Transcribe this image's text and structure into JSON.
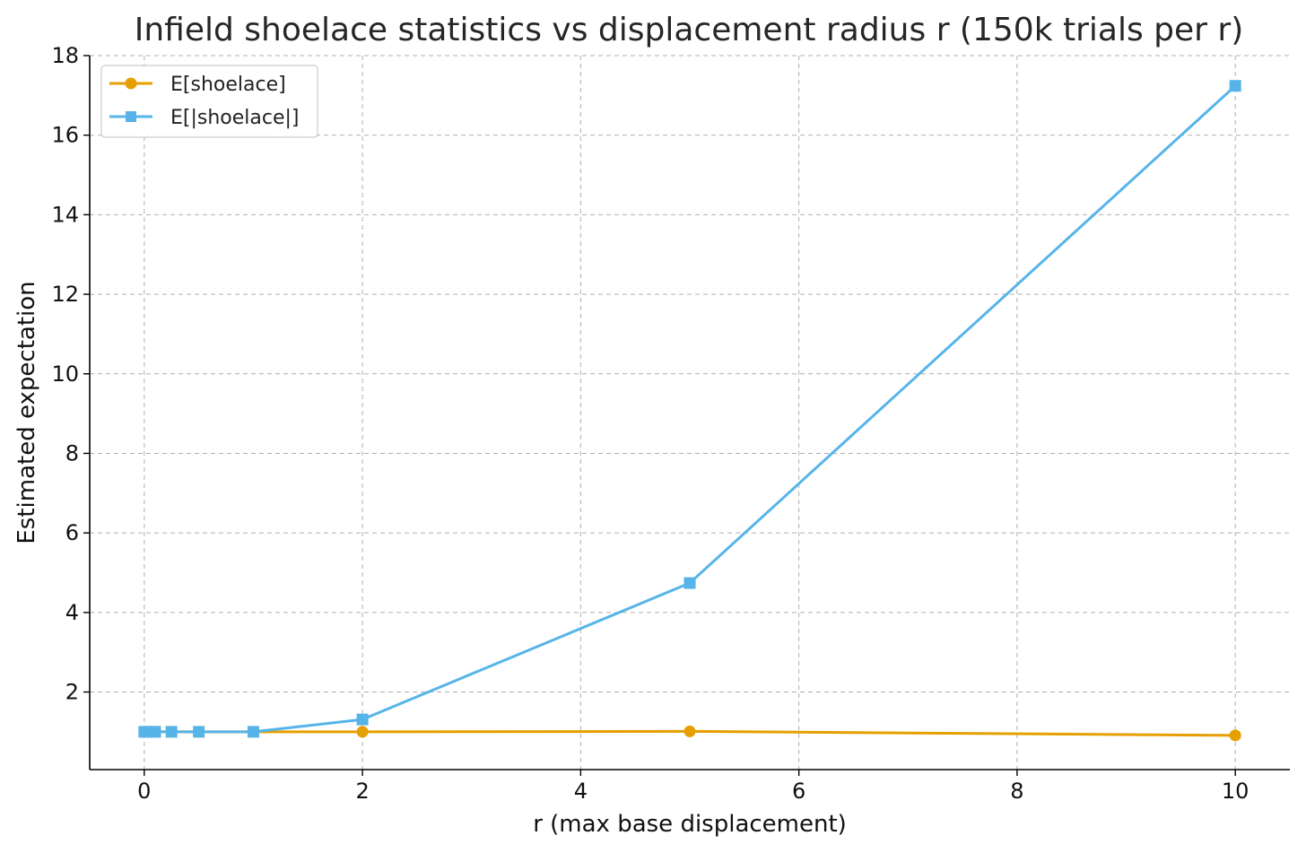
{
  "chart_data": {
    "type": "line",
    "title": "Infield shoelace statistics vs displacement radius r (150k trials per r)",
    "xlabel": "r (max base displacement)",
    "ylabel": "Estimated expectation",
    "xlim": [
      -0.5,
      10.5
    ],
    "ylim": [
      0.05,
      18
    ],
    "xticks": [
      0,
      2,
      4,
      6,
      8,
      10
    ],
    "yticks": [
      2,
      4,
      6,
      8,
      10,
      12,
      14,
      16,
      18
    ],
    "grid": true,
    "legend_position": "upper-left",
    "series": [
      {
        "name": "E[shoelace]",
        "color": "#E69F00",
        "marker": "circle",
        "x": [
          0,
          0.05,
          0.1,
          0.25,
          0.5,
          1,
          2,
          5,
          10
        ],
        "y": [
          1.0,
          1.0,
          1.0,
          1.0,
          1.0,
          1.0,
          1.0,
          1.01,
          0.91
        ]
      },
      {
        "name": "E[|shoelace|]",
        "color": "#56B4E9",
        "marker": "square",
        "x": [
          0,
          0.05,
          0.1,
          0.25,
          0.5,
          1,
          2,
          5,
          10
        ],
        "y": [
          1.0,
          1.0,
          1.0,
          1.0,
          1.0,
          1.0,
          1.31,
          4.74,
          17.24
        ]
      }
    ]
  }
}
